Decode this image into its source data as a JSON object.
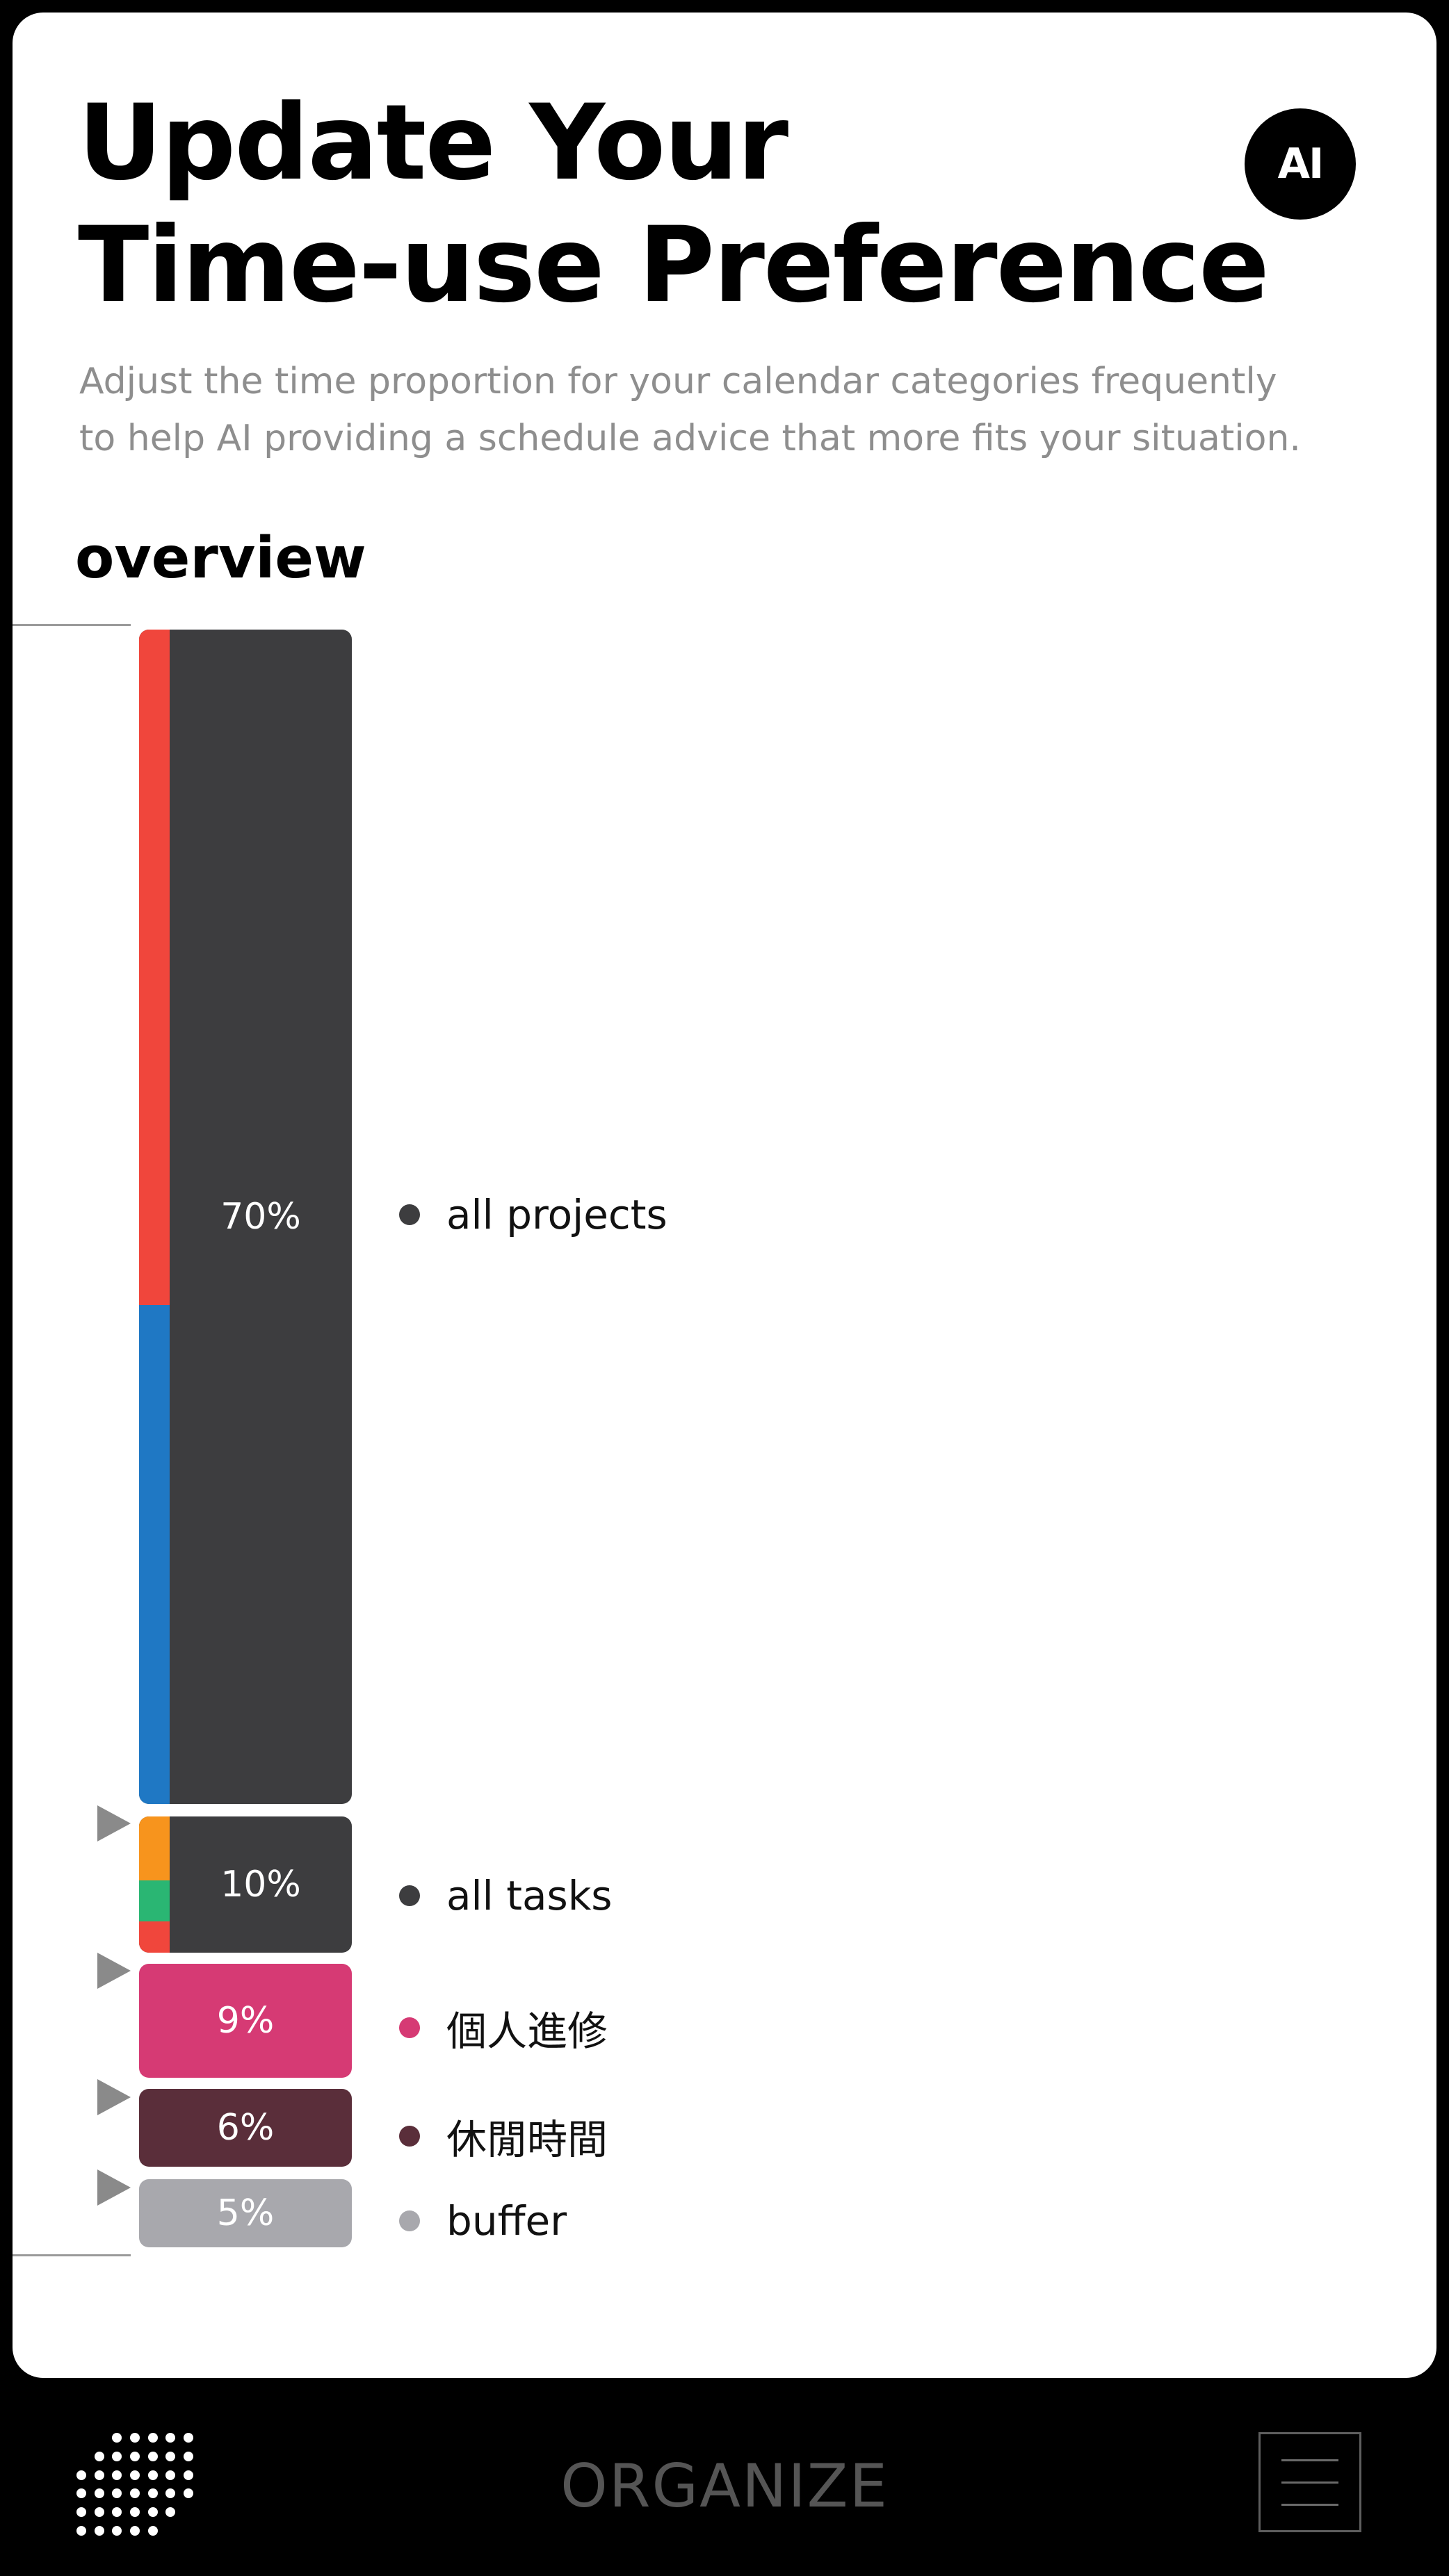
{
  "header": {
    "title_line1": "Update Your",
    "title_line2": "Time-use Preference",
    "ai_badge": "AI",
    "subtitle_line1": "Adjust the time proportion for your calendar categories frequently",
    "subtitle_line2": "to help AI providing a schedule advice that more fits your situation."
  },
  "overview": {
    "title": "overview",
    "segments": [
      {
        "percent_label": "70%",
        "value": 70,
        "label": "all projects",
        "color": "#3d3d3f",
        "dot_color": "#3d3d3f",
        "strip_colors": [
          "#f0463c",
          "#1f78c4"
        ],
        "strip_weights": [
          57.5,
          42.5
        ]
      },
      {
        "percent_label": "10%",
        "value": 10,
        "label": "all tasks",
        "color": "#3d3d3f",
        "dot_color": "#3d3d3f",
        "strip_colors": [
          "#f7941d",
          "#2ab673",
          "#f0463c"
        ],
        "strip_weights": [
          47,
          30,
          23
        ]
      },
      {
        "percent_label": "9%",
        "value": 9,
        "label": "個人進修",
        "color": "#d63a74",
        "dot_color": "#d63a74"
      },
      {
        "percent_label": "6%",
        "value": 6,
        "label": "休閒時間",
        "color": "#5a2e3a",
        "dot_color": "#5a2e3a"
      },
      {
        "percent_label": "5%",
        "value": 5,
        "label": "buffer",
        "color": "#a8a8ad",
        "dot_color": "#a8a8ad"
      }
    ]
  },
  "bottom_bar": {
    "brand": "ORGANIZE",
    "left_icon": "dots-grid-icon",
    "right_icon": "hamburger-menu-icon"
  }
}
